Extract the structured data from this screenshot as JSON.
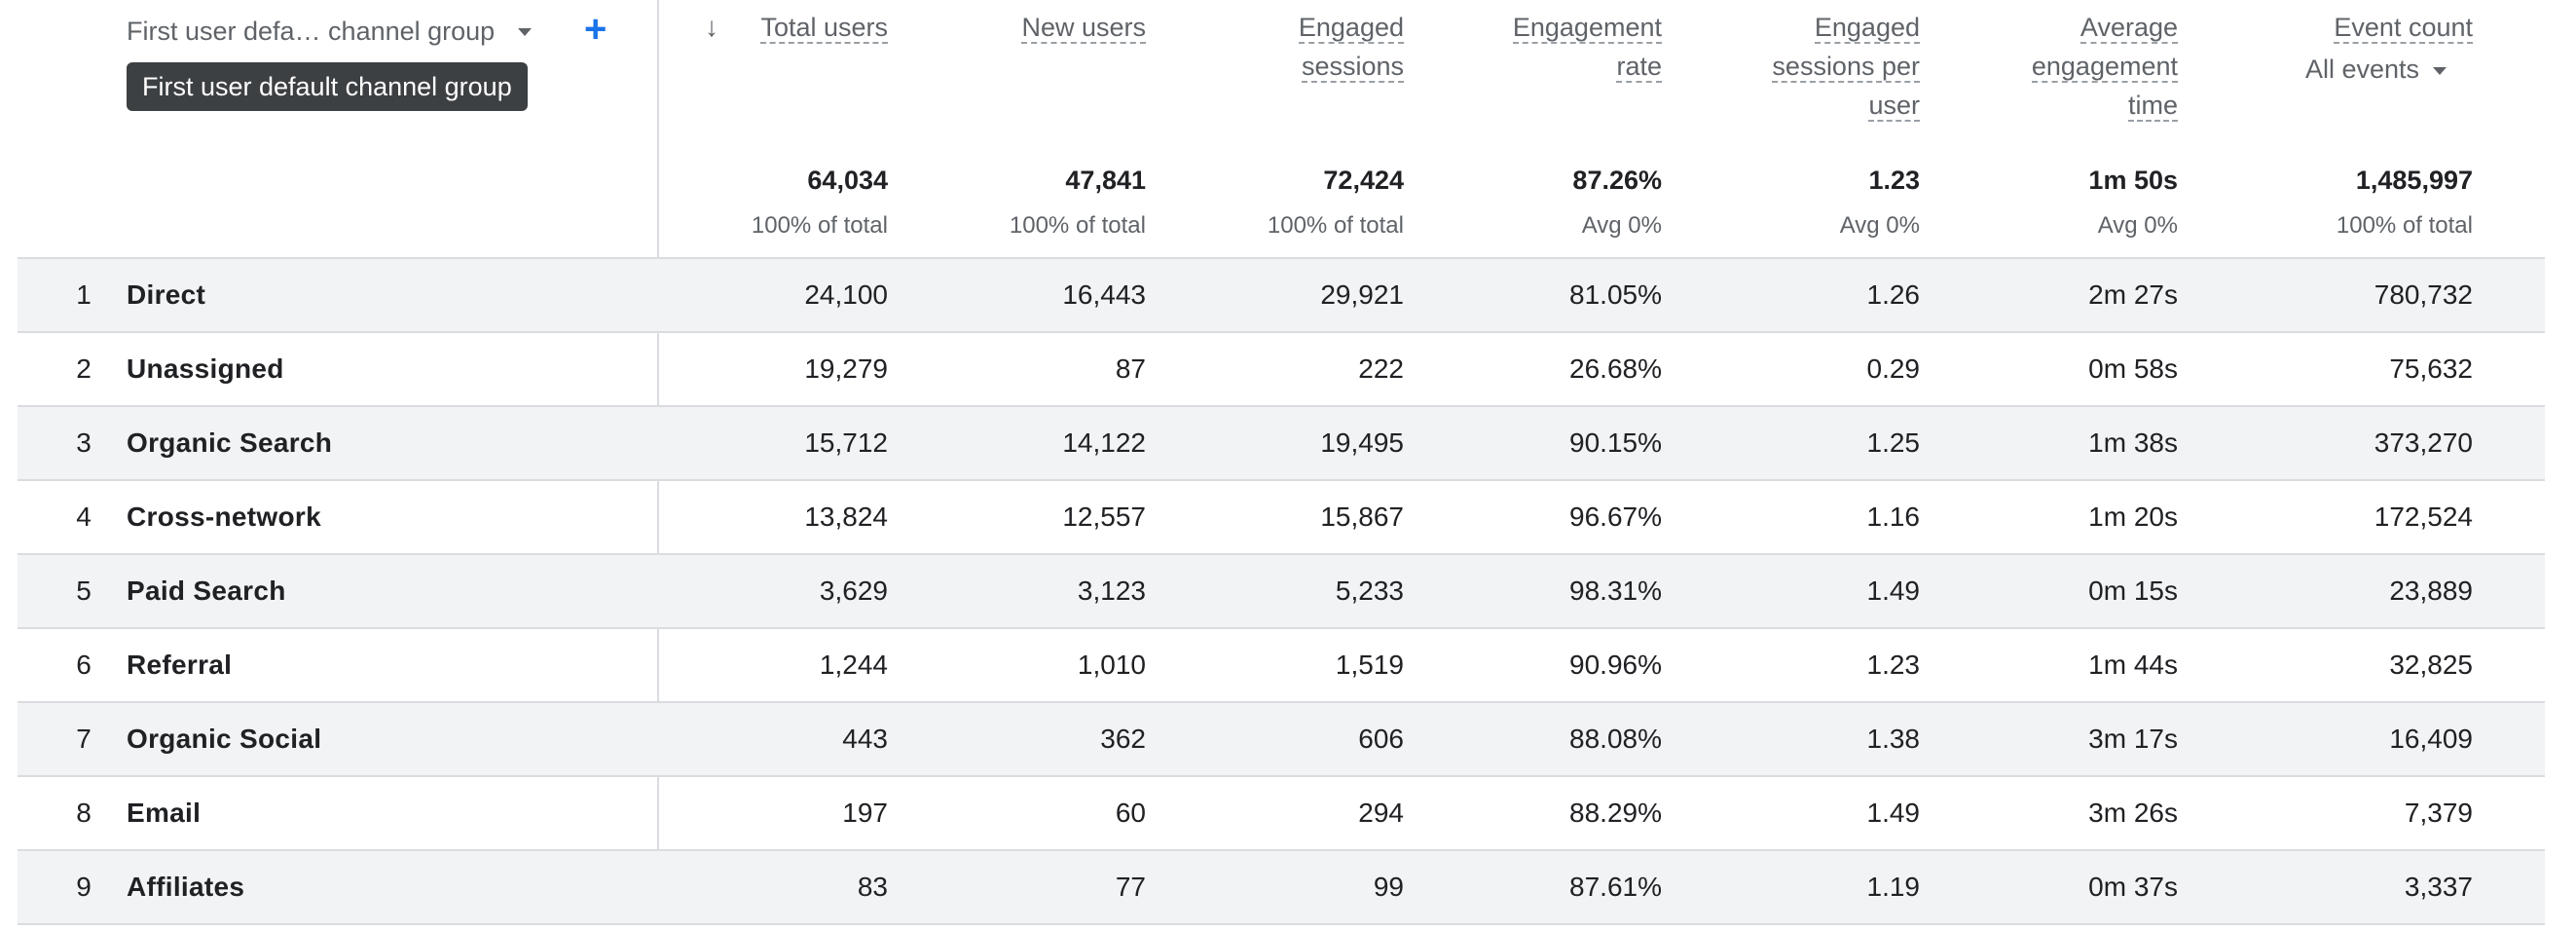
{
  "dimension": {
    "label": "First user defa… channel group",
    "tooltip": "First user default channel group",
    "add_label": "+"
  },
  "metrics": [
    {
      "id": "total_users",
      "title": "Total users",
      "lines": [
        "Total users"
      ],
      "sorted": true
    },
    {
      "id": "new_users",
      "title": "New users",
      "lines": [
        "New users"
      ]
    },
    {
      "id": "engaged_sessions",
      "title": "Engaged sessions",
      "lines": [
        "Engaged",
        "sessions"
      ]
    },
    {
      "id": "engagement_rate",
      "title": "Engagement rate",
      "lines": [
        "Engagement",
        "rate"
      ]
    },
    {
      "id": "engaged_sessions_per_user",
      "title": "Engaged sessions per user",
      "lines": [
        "Engaged",
        "sessions per",
        "user"
      ]
    },
    {
      "id": "avg_engagement_time",
      "title": "Average engagement time",
      "lines": [
        "Average",
        "engagement",
        "time"
      ]
    },
    {
      "id": "event_count",
      "title": "Event count",
      "lines": [
        "Event count"
      ],
      "selector": "All events"
    }
  ],
  "sort_icon": "arrow-down-icon",
  "totals": [
    {
      "value": "64,034",
      "sub": "100% of total"
    },
    {
      "value": "47,841",
      "sub": "100% of total"
    },
    {
      "value": "72,424",
      "sub": "100% of total"
    },
    {
      "value": "87.26%",
      "sub": "Avg 0%"
    },
    {
      "value": "1.23",
      "sub": "Avg 0%"
    },
    {
      "value": "1m 50s",
      "sub": "Avg 0%"
    },
    {
      "value": "1,485,997",
      "sub": "100% of total"
    }
  ],
  "rows": [
    {
      "idx": "1",
      "name": "Direct",
      "values": [
        "24,100",
        "16,443",
        "29,921",
        "81.05%",
        "1.26",
        "2m 27s",
        "780,732"
      ]
    },
    {
      "idx": "2",
      "name": "Unassigned",
      "values": [
        "19,279",
        "87",
        "222",
        "26.68%",
        "0.29",
        "0m 58s",
        "75,632"
      ]
    },
    {
      "idx": "3",
      "name": "Organic Search",
      "values": [
        "15,712",
        "14,122",
        "19,495",
        "90.15%",
        "1.25",
        "1m 38s",
        "373,270"
      ]
    },
    {
      "idx": "4",
      "name": "Cross-network",
      "values": [
        "13,824",
        "12,557",
        "15,867",
        "96.67%",
        "1.16",
        "1m 20s",
        "172,524"
      ]
    },
    {
      "idx": "5",
      "name": "Paid Search",
      "values": [
        "3,629",
        "3,123",
        "5,233",
        "98.31%",
        "1.49",
        "0m 15s",
        "23,889"
      ]
    },
    {
      "idx": "6",
      "name": "Referral",
      "values": [
        "1,244",
        "1,010",
        "1,519",
        "90.96%",
        "1.23",
        "1m 44s",
        "32,825"
      ]
    },
    {
      "idx": "7",
      "name": "Organic Social",
      "values": [
        "443",
        "362",
        "606",
        "88.08%",
        "1.38",
        "3m 17s",
        "16,409"
      ]
    },
    {
      "idx": "8",
      "name": "Email",
      "values": [
        "197",
        "60",
        "294",
        "88.29%",
        "1.49",
        "3m 26s",
        "7,379"
      ]
    },
    {
      "idx": "9",
      "name": "Affiliates",
      "values": [
        "83",
        "77",
        "99",
        "87.61%",
        "1.19",
        "0m 37s",
        "3,337"
      ]
    }
  ],
  "colors": {
    "accent": "#1a73e8",
    "row_shade": "#f1f3f4",
    "border": "#dadce0",
    "tooltip_bg": "#3c4043"
  }
}
